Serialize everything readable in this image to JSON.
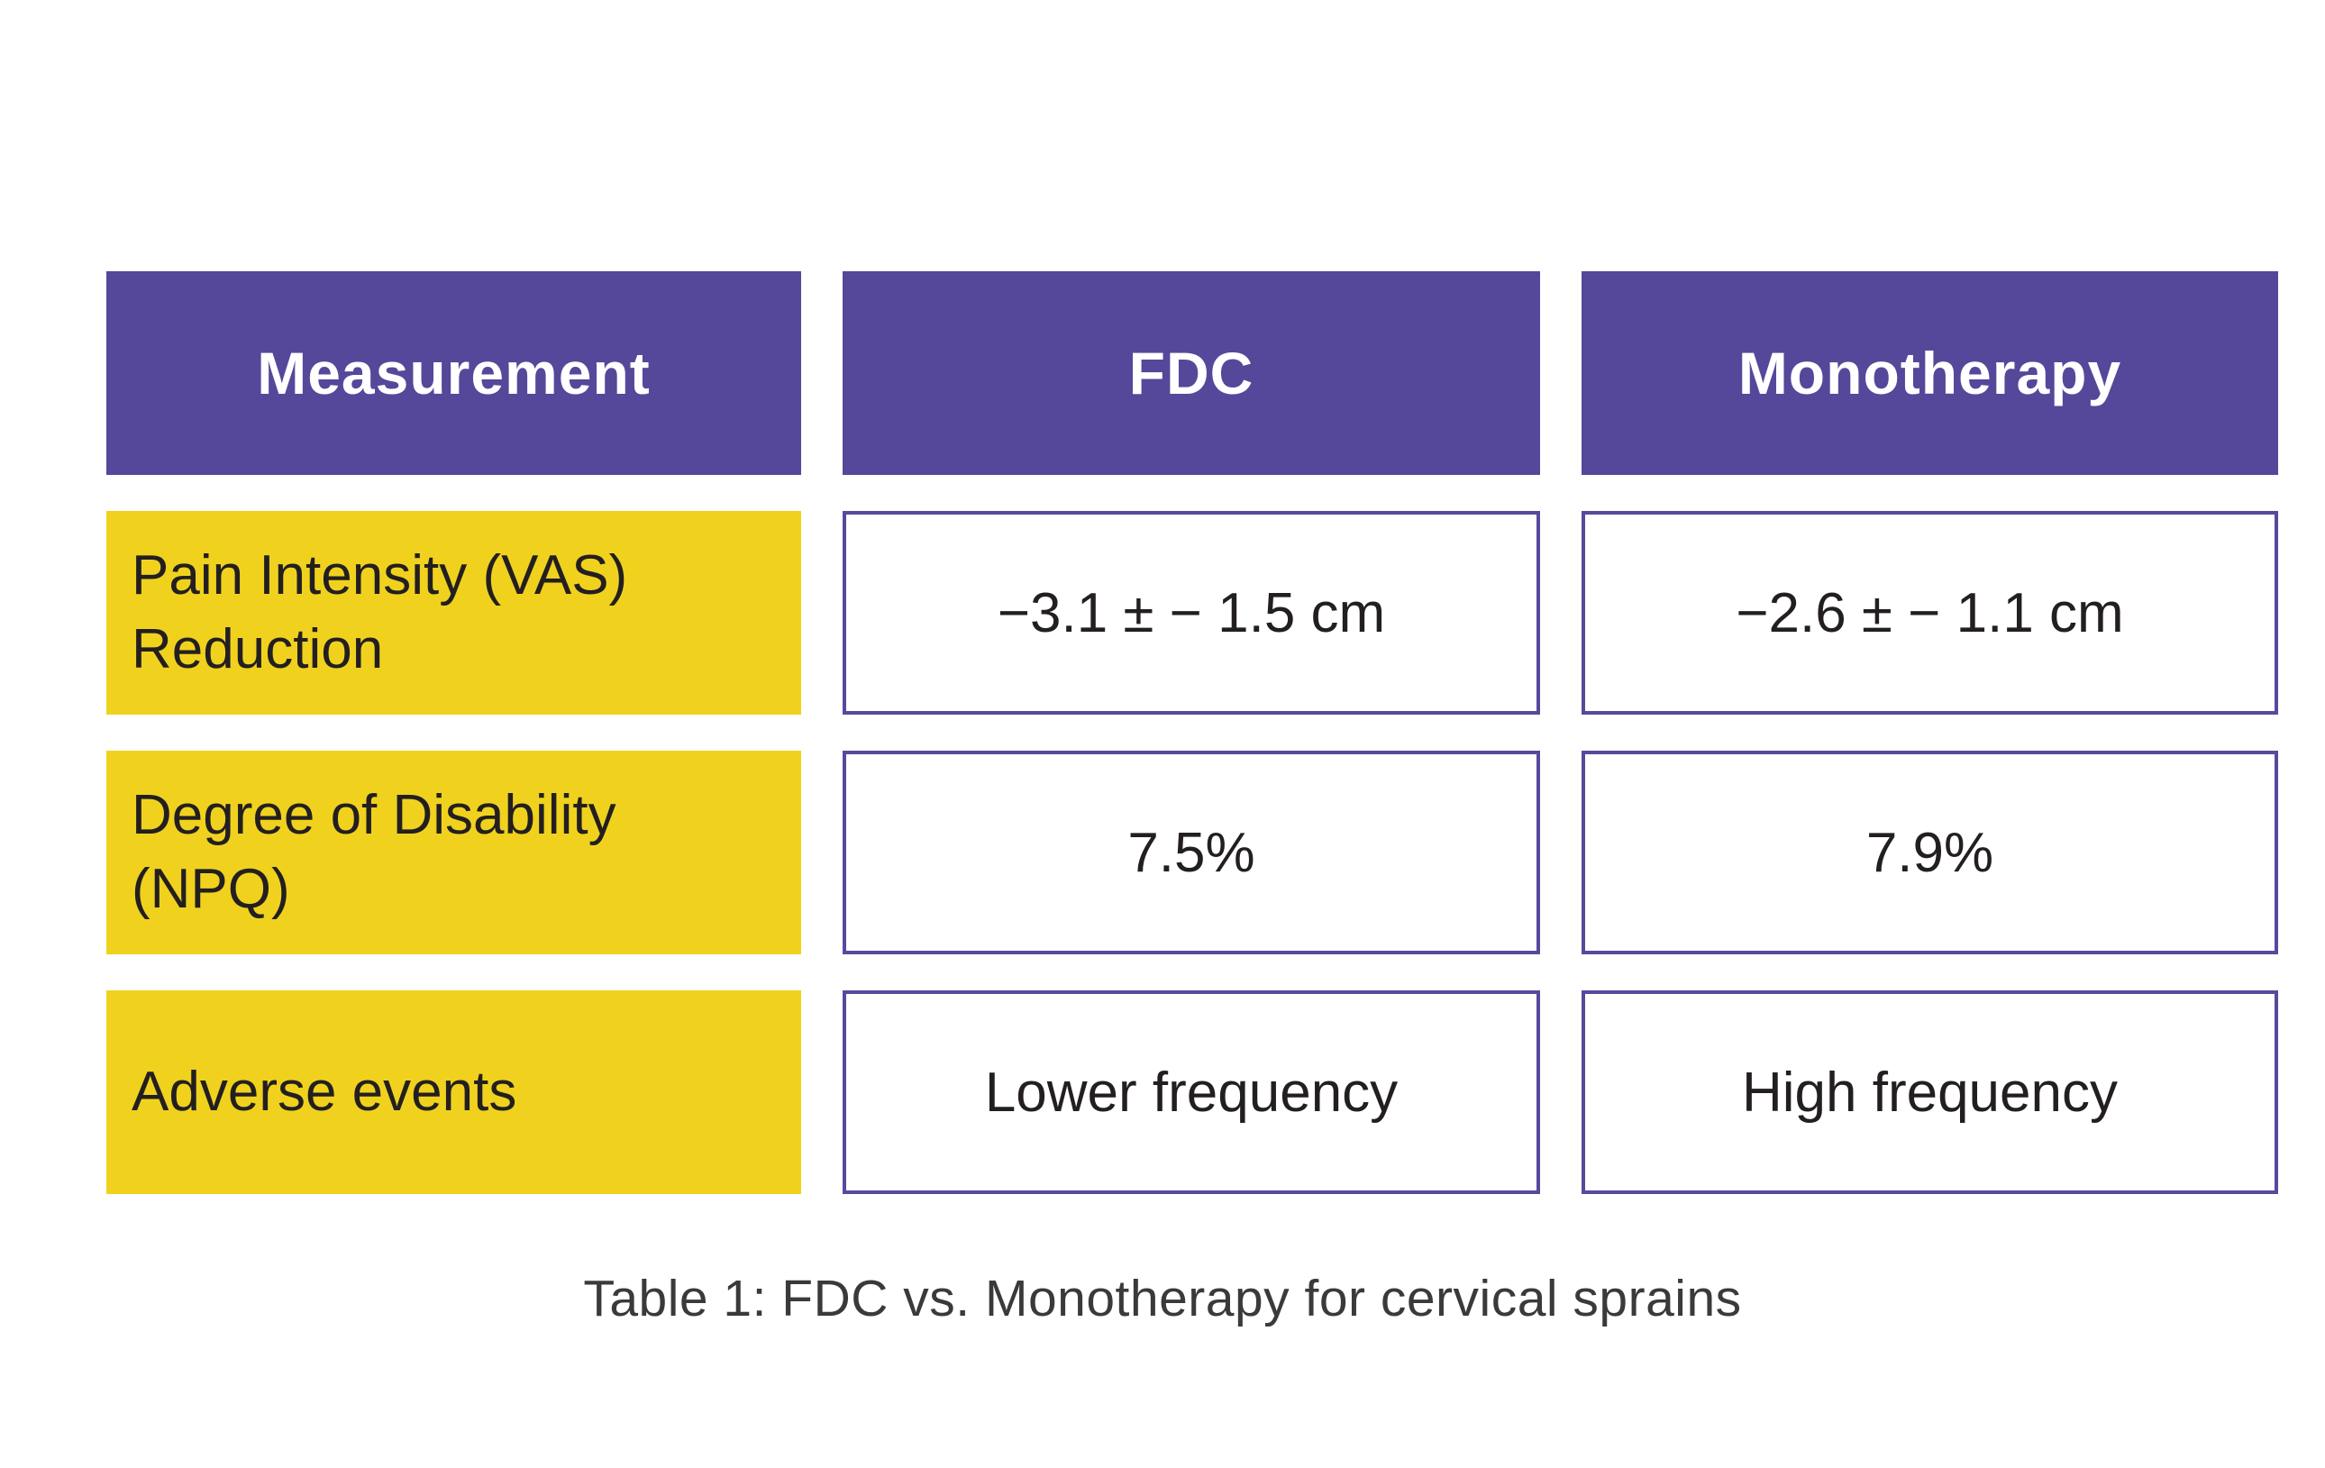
{
  "colors": {
    "header_bg": "#55489A",
    "label_bg": "#F0D21E",
    "value_cell_border": "#564A9B",
    "header_text": "#FFFFFF",
    "body_text": "#231F20",
    "caption_text": "#3A3A3A",
    "page_bg": "#FFFFFF"
  },
  "table": {
    "columns": [
      "Measurement",
      "FDC",
      "Monotherapy"
    ],
    "rows": [
      {
        "label": "Pain Intensity (VAS)\nReduction",
        "fdc": "−3.1 ± − 1.5 cm",
        "monotherapy": "−2.6 ± − 1.1 cm"
      },
      {
        "label": "Degree of Disability\n(NPQ)",
        "fdc": "7.5%",
        "monotherapy": "7.9%"
      },
      {
        "label": "Adverse events",
        "fdc": "Lower frequency",
        "monotherapy": "High frequency"
      }
    ]
  },
  "caption": "Table 1: FDC vs. Monotherapy for cervical sprains",
  "chart_data": {
    "type": "table",
    "title": "Table 1: FDC vs. Monotherapy for cervical sprains",
    "columns": [
      "Measurement",
      "FDC",
      "Monotherapy"
    ],
    "rows": [
      [
        "Pain Intensity (VAS) Reduction",
        "−3.1 ± − 1.5 cm",
        "−2.6 ± − 1.1 cm"
      ],
      [
        "Degree of Disability (NPQ)",
        "7.5%",
        "7.9%"
      ],
      [
        "Adverse events",
        "Lower frequency",
        "High frequency"
      ]
    ]
  }
}
